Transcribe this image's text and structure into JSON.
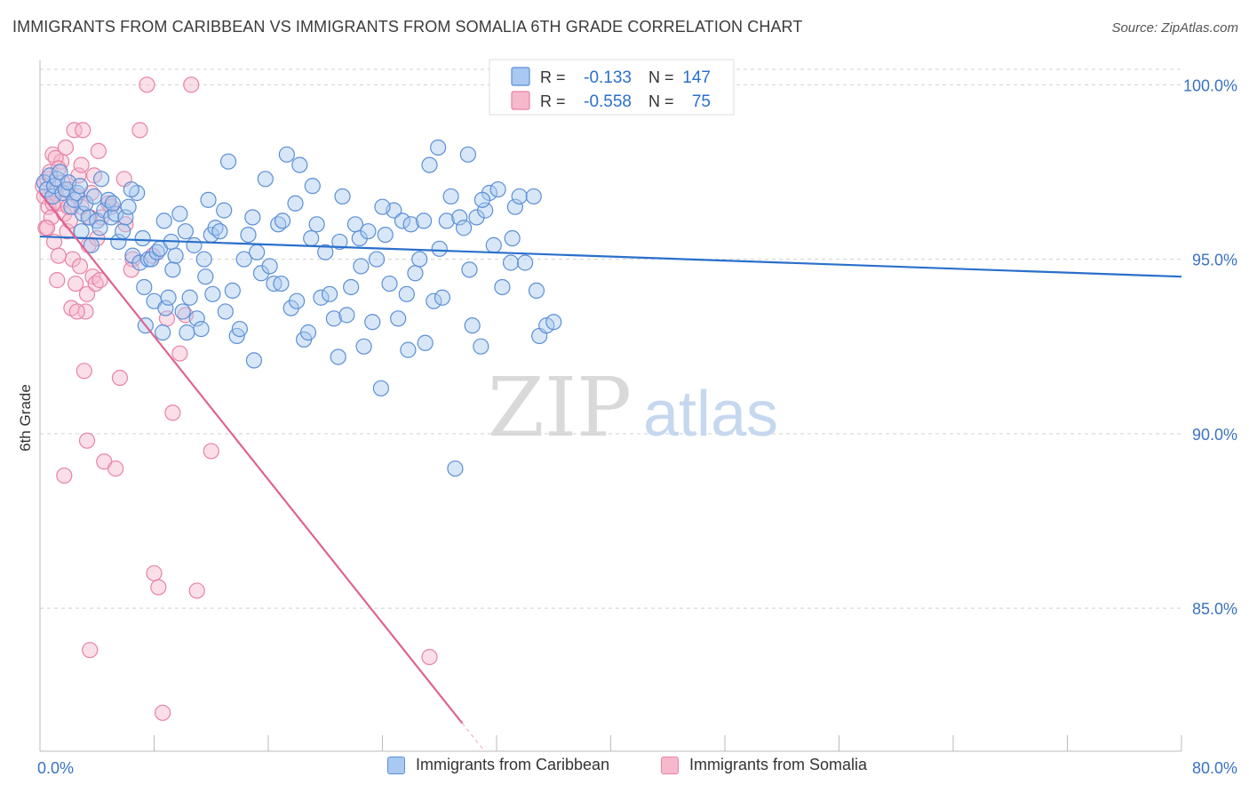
{
  "header": {
    "title": "IMMIGRANTS FROM CARIBBEAN VS IMMIGRANTS FROM SOMALIA 6TH GRADE CORRELATION CHART",
    "source": "Source: ZipAtlas.com"
  },
  "watermark": {
    "zip": "ZIP",
    "atlas": "atlas"
  },
  "colors": {
    "caribbean_fill": "#a9c9f0",
    "caribbean_stroke": "#5b8fd6",
    "caribbean_line": "#2a6fcc",
    "somalia_fill": "#f6b9cc",
    "somalia_stroke": "#e882a6",
    "somalia_line": "#e0628f",
    "axis_text": "#3a72c4",
    "grid": "#d0d0d0"
  },
  "stats_legend": {
    "rows": [
      {
        "r_label": "R =",
        "r_value": "-0.133",
        "n_label": "N =",
        "n_value": "147"
      },
      {
        "r_label": "R =",
        "r_value": "-0.558",
        "n_label": "N =",
        "n_value": "75"
      }
    ]
  },
  "chart_data": {
    "type": "scatter",
    "xlabel": "",
    "ylabel": "6th Grade",
    "xlim": [
      0,
      80
    ],
    "ylim": [
      80.9,
      100.9
    ],
    "x_tick_labels": [
      "0.0%",
      "80.0%"
    ],
    "y_tick_labels": [
      "100.0%",
      "95.0%",
      "90.0%",
      "85.0%"
    ],
    "y_ticks": [
      100,
      95,
      90,
      85
    ],
    "grid": "horizontal dashed",
    "legend": "bottom-center",
    "series": [
      {
        "name": "Immigrants from Caribbean",
        "R": -0.133,
        "N": 147,
        "trend": {
          "x": [
            0,
            80
          ],
          "y": [
            95.65,
            94.5
          ]
        },
        "points": [
          [
            0.3,
            97.2
          ],
          [
            0.5,
            97.0
          ],
          [
            0.7,
            97.4
          ],
          [
            0.9,
            96.8
          ],
          [
            1.0,
            97.1
          ],
          [
            1.2,
            97.3
          ],
          [
            1.4,
            97.5
          ],
          [
            1.6,
            96.9
          ],
          [
            1.8,
            97.0
          ],
          [
            2.0,
            97.2
          ],
          [
            2.2,
            96.5
          ],
          [
            2.4,
            96.7
          ],
          [
            2.6,
            96.9
          ],
          [
            2.8,
            97.1
          ],
          [
            3.0,
            96.3
          ],
          [
            3.2,
            96.6
          ],
          [
            3.4,
            96.2
          ],
          [
            3.6,
            95.4
          ],
          [
            3.8,
            96.8
          ],
          [
            4.0,
            96.1
          ],
          [
            4.2,
            95.9
          ],
          [
            4.5,
            96.4
          ],
          [
            4.8,
            96.7
          ],
          [
            5.0,
            96.2
          ],
          [
            5.3,
            96.3
          ],
          [
            5.5,
            95.5
          ],
          [
            5.8,
            95.8
          ],
          [
            6.0,
            96.2
          ],
          [
            6.2,
            96.5
          ],
          [
            6.5,
            95.1
          ],
          [
            6.8,
            96.9
          ],
          [
            7.0,
            94.9
          ],
          [
            7.2,
            95.6
          ],
          [
            7.4,
            93.1
          ],
          [
            7.6,
            95.0
          ],
          [
            7.8,
            95.0
          ],
          [
            8.0,
            93.8
          ],
          [
            8.2,
            95.2
          ],
          [
            8.4,
            95.3
          ],
          [
            8.6,
            92.9
          ],
          [
            8.8,
            93.6
          ],
          [
            9.0,
            93.9
          ],
          [
            9.3,
            94.7
          ],
          [
            9.5,
            95.1
          ],
          [
            9.8,
            96.3
          ],
          [
            10.0,
            93.5
          ],
          [
            10.3,
            92.9
          ],
          [
            10.5,
            93.9
          ],
          [
            10.8,
            95.4
          ],
          [
            11.0,
            93.3
          ],
          [
            11.3,
            93.0
          ],
          [
            11.5,
            95.0
          ],
          [
            11.8,
            96.7
          ],
          [
            12.0,
            95.7
          ],
          [
            12.3,
            95.9
          ],
          [
            12.6,
            95.8
          ],
          [
            12.9,
            96.4
          ],
          [
            13.2,
            97.8
          ],
          [
            13.5,
            94.1
          ],
          [
            13.8,
            92.8
          ],
          [
            14.0,
            93.0
          ],
          [
            14.3,
            95.0
          ],
          [
            14.6,
            95.7
          ],
          [
            14.9,
            96.2
          ],
          [
            15.2,
            95.2
          ],
          [
            15.5,
            94.6
          ],
          [
            15.8,
            97.3
          ],
          [
            16.1,
            94.8
          ],
          [
            16.4,
            94.3
          ],
          [
            16.7,
            96.0
          ],
          [
            17.0,
            96.1
          ],
          [
            17.3,
            98.0
          ],
          [
            17.6,
            93.6
          ],
          [
            17.9,
            96.6
          ],
          [
            18.2,
            97.7
          ],
          [
            18.5,
            92.7
          ],
          [
            18.8,
            92.9
          ],
          [
            19.1,
            97.1
          ],
          [
            19.4,
            96.0
          ],
          [
            19.7,
            93.9
          ],
          [
            20.0,
            95.2
          ],
          [
            20.3,
            94.0
          ],
          [
            20.6,
            93.3
          ],
          [
            20.9,
            92.2
          ],
          [
            21.2,
            96.8
          ],
          [
            21.5,
            93.4
          ],
          [
            21.8,
            94.2
          ],
          [
            22.1,
            96.0
          ],
          [
            22.4,
            95.6
          ],
          [
            22.7,
            92.5
          ],
          [
            23.0,
            95.8
          ],
          [
            23.3,
            93.2
          ],
          [
            23.6,
            95.0
          ],
          [
            23.9,
            91.3
          ],
          [
            24.2,
            95.7
          ],
          [
            24.5,
            94.3
          ],
          [
            24.8,
            96.4
          ],
          [
            25.1,
            93.3
          ],
          [
            25.4,
            96.1
          ],
          [
            25.7,
            94.0
          ],
          [
            26.0,
            96.0
          ],
          [
            26.3,
            94.6
          ],
          [
            26.6,
            95.0
          ],
          [
            27.0,
            92.6
          ],
          [
            27.3,
            97.7
          ],
          [
            27.6,
            93.8
          ],
          [
            27.9,
            98.2
          ],
          [
            28.2,
            93.9
          ],
          [
            28.5,
            96.1
          ],
          [
            28.8,
            96.8
          ],
          [
            29.1,
            89.0
          ],
          [
            29.4,
            96.2
          ],
          [
            29.7,
            95.9
          ],
          [
            30.0,
            98.0
          ],
          [
            30.3,
            93.1
          ],
          [
            30.6,
            96.2
          ],
          [
            30.9,
            92.5
          ],
          [
            31.2,
            96.4
          ],
          [
            31.5,
            96.9
          ],
          [
            31.8,
            95.4
          ],
          [
            32.1,
            97.0
          ],
          [
            32.4,
            94.2
          ],
          [
            32.7,
            100.0
          ],
          [
            33.0,
            94.9
          ],
          [
            33.3,
            96.5
          ],
          [
            33.6,
            96.8
          ],
          [
            34.0,
            94.9
          ],
          [
            34.3,
            100.0
          ],
          [
            34.6,
            96.8
          ],
          [
            35.0,
            92.8
          ],
          [
            35.5,
            93.1
          ],
          [
            36.0,
            93.2
          ],
          [
            9.2,
            95.5
          ],
          [
            12.1,
            94.0
          ],
          [
            16.9,
            94.3
          ],
          [
            21.0,
            95.5
          ],
          [
            24.0,
            96.5
          ],
          [
            26.9,
            96.1
          ],
          [
            30.1,
            94.7
          ],
          [
            33.1,
            95.6
          ],
          [
            5.1,
            96.6
          ],
          [
            6.4,
            97.0
          ],
          [
            7.3,
            94.2
          ],
          [
            10.2,
            95.8
          ],
          [
            11.6,
            94.5
          ],
          [
            13.0,
            93.5
          ],
          [
            15.0,
            92.1
          ],
          [
            19.0,
            95.6
          ],
          [
            22.5,
            94.8
          ],
          [
            25.8,
            92.4
          ],
          [
            28.0,
            95.3
          ],
          [
            31.0,
            96.7
          ],
          [
            34.8,
            94.1
          ],
          [
            2.9,
            95.8
          ],
          [
            4.3,
            97.3
          ],
          [
            8.7,
            96.1
          ],
          [
            18.0,
            93.8
          ]
        ]
      },
      {
        "name": "Immigrants from Somalia",
        "R": -0.558,
        "N": 75,
        "trend": {
          "x": [
            0,
            29.6
          ],
          "y": [
            96.9,
            81.7
          ]
        },
        "points": [
          [
            0.2,
            97.1
          ],
          [
            0.3,
            96.8
          ],
          [
            0.4,
            95.9
          ],
          [
            0.5,
            97.3
          ],
          [
            0.6,
            96.5
          ],
          [
            0.7,
            97.5
          ],
          [
            0.8,
            96.2
          ],
          [
            0.9,
            98.0
          ],
          [
            1.0,
            95.5
          ],
          [
            1.1,
            96.9
          ],
          [
            1.2,
            94.4
          ],
          [
            1.3,
            95.1
          ],
          [
            1.4,
            96.6
          ],
          [
            1.5,
            97.8
          ],
          [
            1.6,
            97.2
          ],
          [
            1.7,
            96.3
          ],
          [
            1.8,
            98.2
          ],
          [
            1.9,
            95.8
          ],
          [
            2.0,
            97.0
          ],
          [
            2.1,
            96.1
          ],
          [
            2.2,
            93.6
          ],
          [
            2.3,
            95.0
          ],
          [
            2.4,
            98.7
          ],
          [
            2.5,
            94.3
          ],
          [
            2.6,
            96.8
          ],
          [
            2.7,
            97.4
          ],
          [
            2.8,
            94.8
          ],
          [
            2.9,
            96.5
          ],
          [
            3.0,
            98.7
          ],
          [
            3.1,
            91.8
          ],
          [
            3.2,
            93.5
          ],
          [
            3.3,
            94.0
          ],
          [
            3.4,
            95.4
          ],
          [
            3.5,
            96.2
          ],
          [
            3.6,
            96.9
          ],
          [
            3.7,
            94.5
          ],
          [
            3.8,
            97.4
          ],
          [
            3.9,
            94.3
          ],
          [
            4.0,
            95.6
          ],
          [
            4.1,
            98.1
          ],
          [
            4.3,
            96.2
          ],
          [
            4.5,
            89.2
          ],
          [
            4.8,
            96.6
          ],
          [
            5.0,
            96.5
          ],
          [
            5.3,
            89.0
          ],
          [
            5.6,
            91.6
          ],
          [
            6.0,
            96.0
          ],
          [
            6.5,
            95.0
          ],
          [
            7.0,
            98.7
          ],
          [
            7.5,
            100.0
          ],
          [
            8.0,
            86.0
          ],
          [
            8.3,
            85.6
          ],
          [
            8.6,
            82.0
          ],
          [
            8.9,
            93.3
          ],
          [
            9.3,
            90.6
          ],
          [
            9.8,
            92.3
          ],
          [
            10.2,
            93.4
          ],
          [
            10.6,
            100.0
          ],
          [
            11.0,
            85.5
          ],
          [
            12.0,
            89.5
          ],
          [
            3.5,
            83.8
          ],
          [
            1.7,
            88.8
          ],
          [
            3.3,
            89.8
          ],
          [
            1.1,
            97.9
          ],
          [
            2.9,
            97.7
          ],
          [
            5.9,
            97.3
          ],
          [
            7.9,
            95.1
          ],
          [
            4.2,
            94.4
          ],
          [
            0.5,
            95.9
          ],
          [
            1.3,
            97.6
          ],
          [
            2.6,
            93.5
          ],
          [
            6.4,
            94.7
          ],
          [
            27.3,
            83.6
          ],
          [
            0.9,
            96.6
          ],
          [
            2.0,
            96.5
          ]
        ]
      }
    ]
  },
  "legend_bottom": {
    "items": [
      {
        "label": "Immigrants from Caribbean"
      },
      {
        "label": "Immigrants from Somalia"
      }
    ]
  }
}
